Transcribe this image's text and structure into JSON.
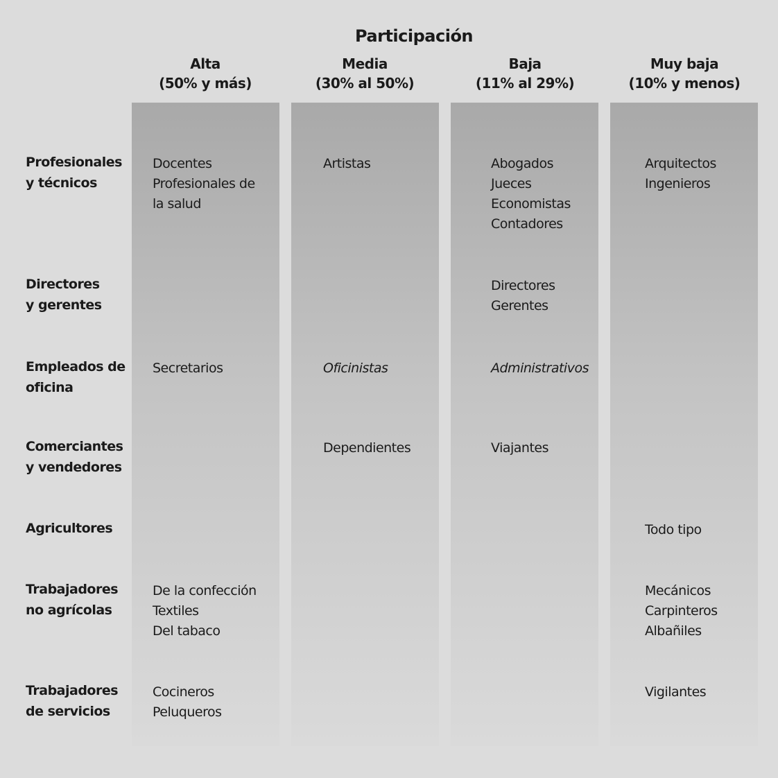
{
  "header": {
    "title": "Participación"
  },
  "columns": [
    {
      "name": "Alta",
      "range": "(50% y más)"
    },
    {
      "name": "Media",
      "range": "(30% al 50%)"
    },
    {
      "name": "Baja",
      "range": "(11% al 29%)"
    },
    {
      "name": "Muy baja",
      "range": "(10% y menos)"
    }
  ],
  "rows": [
    {
      "label": [
        "Profesionales",
        "y técnicos"
      ],
      "cells": [
        [
          "Docentes",
          "Profesionales de",
          "la salud"
        ],
        [
          "Artistas"
        ],
        [
          "Abogados",
          "Jueces",
          "Economistas",
          "Contadores"
        ],
        [
          "Arquitectos",
          "Ingenieros"
        ]
      ]
    },
    {
      "label": [
        "Directores",
        "y gerentes"
      ],
      "cells": [
        [],
        [],
        [
          "Directores",
          "Gerentes"
        ],
        []
      ]
    },
    {
      "label": [
        "Empleados de",
        "oficina"
      ],
      "cells": [
        [
          "Secretarios"
        ],
        [
          "Oficinistas"
        ],
        [
          "Administrativos"
        ],
        []
      ]
    },
    {
      "label": [
        "Comerciantes",
        "y vendedores"
      ],
      "cells": [
        [],
        [
          "Dependientes"
        ],
        [
          "Viajantes"
        ],
        []
      ]
    },
    {
      "label": [
        "Agricultores"
      ],
      "cells": [
        [],
        [],
        [],
        [
          "Todo tipo"
        ]
      ]
    },
    {
      "label": [
        "Trabajadores",
        "no agrícolas"
      ],
      "cells": [
        [
          "De la confección",
          "Textiles",
          "Del tabaco"
        ],
        [],
        [],
        [
          "Mecánicos",
          "Carpinteros",
          "Albañiles"
        ]
      ]
    },
    {
      "label": [
        "Trabajadores",
        "de servicios"
      ],
      "cells": [
        [
          "Cocineros",
          "Peluqueros"
        ],
        [],
        [],
        [
          "Vigilantes"
        ]
      ]
    }
  ]
}
